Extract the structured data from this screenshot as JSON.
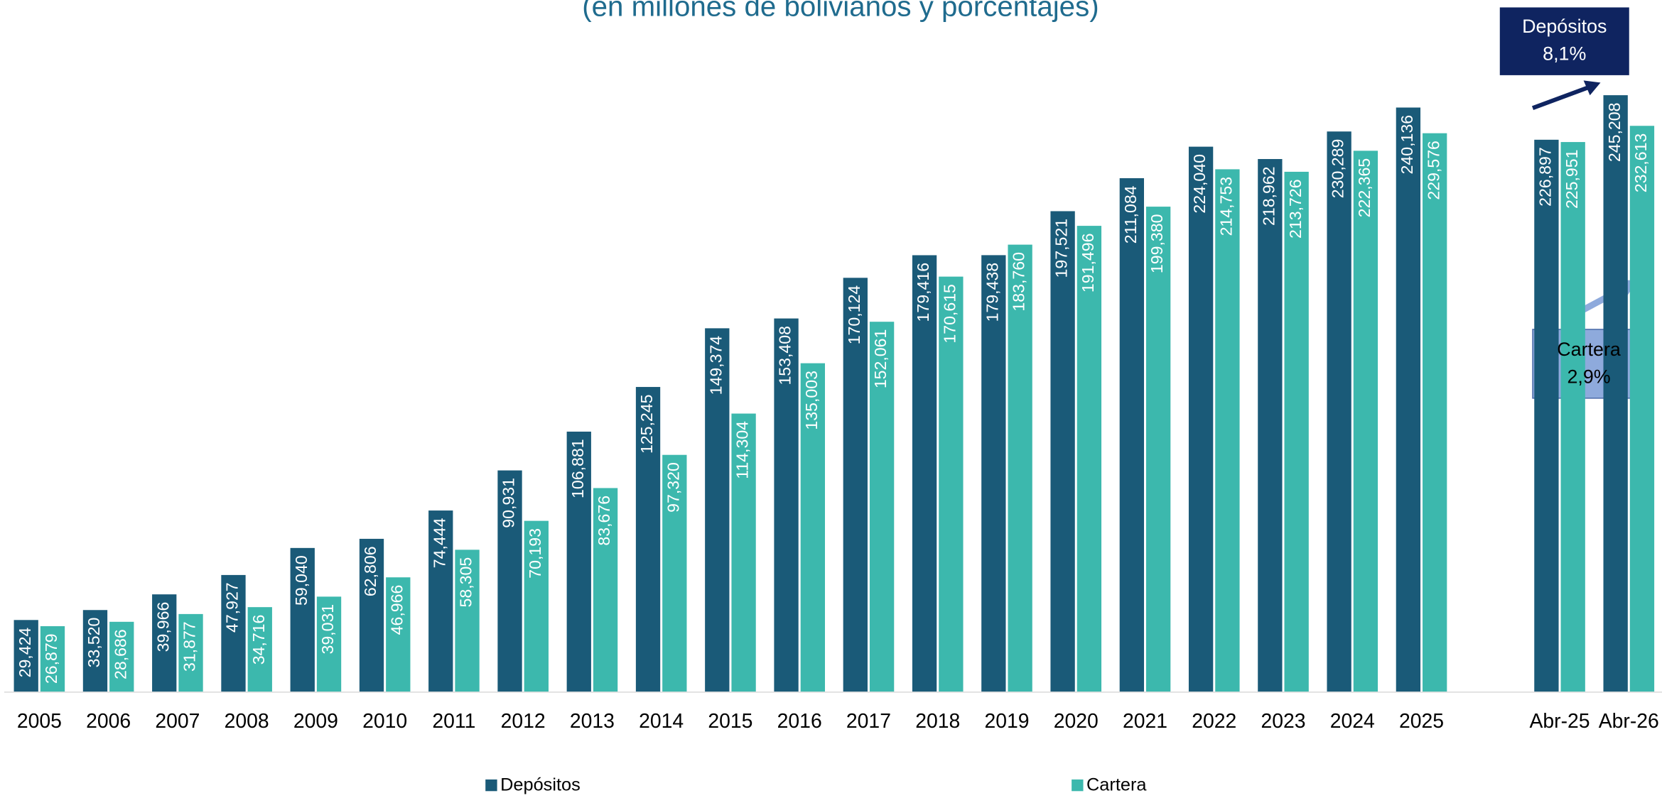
{
  "chart_data": {
    "type": "bar",
    "subtitle": "(en millones de bolivianos y porcentajes)",
    "categories": [
      "2005",
      "2006",
      "2007",
      "2008",
      "2009",
      "2010",
      "2011",
      "2012",
      "2013",
      "2014",
      "2015",
      "2016",
      "2017",
      "2018",
      "2019",
      "2020",
      "2021",
      "2022",
      "2023",
      "2024",
      "2025",
      null,
      "Abr-25",
      "Abr-26"
    ],
    "series": [
      {
        "name": "Depósitos",
        "color": "#1a5a78",
        "values": [
          29424,
          33520,
          39966,
          47927,
          59040,
          62806,
          74444,
          90931,
          106881,
          125245,
          149374,
          153408,
          170124,
          179416,
          179438,
          197521,
          211084,
          224040,
          218962,
          230289,
          240136,
          null,
          226897,
          245208
        ],
        "value_labels": [
          "29,424",
          "33,520",
          "39,966",
          "47,927",
          "59,040",
          "62,806",
          "74,444",
          "90,931",
          "106,881",
          "125,245",
          "149,374",
          "153,408",
          "170,124",
          "179,416",
          "179,438",
          "197,521",
          "211,084",
          "224,040",
          "218,962",
          "230,289",
          "240,136",
          null,
          "226,897",
          "245,208"
        ]
      },
      {
        "name": "Cartera",
        "color": "#3cb8ad",
        "values": [
          26879,
          28686,
          31877,
          34716,
          39031,
          46966,
          58305,
          70193,
          83676,
          97320,
          114304,
          135003,
          152061,
          170615,
          183760,
          191496,
          199380,
          214753,
          213726,
          222365,
          229576,
          null,
          225951,
          232613
        ],
        "value_labels": [
          "26,879",
          "28,686",
          "31,877",
          "34,716",
          "39,031",
          "46,966",
          "58,305",
          "70,193",
          "83,676",
          "97,320",
          "114,304",
          "135,003",
          "152,061",
          "170,615",
          "183,760",
          "191,496",
          "199,380",
          "214,753",
          "213,726",
          "222,365",
          "229,576",
          null,
          "225,951",
          "232,613"
        ]
      }
    ],
    "ylim": [
      0,
      280000
    ],
    "annotations": [
      {
        "lines": [
          "Depósitos",
          "8,1%"
        ],
        "color": "#0f2460"
      },
      {
        "lines": [
          "Cartera",
          "2,9%"
        ],
        "color": "#8eaadc"
      }
    ]
  }
}
